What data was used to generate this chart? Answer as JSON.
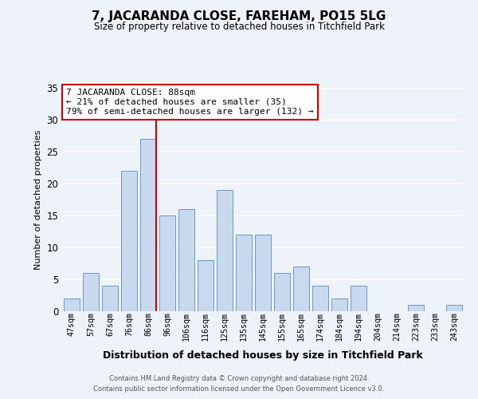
{
  "title": "7, JACARANDA CLOSE, FAREHAM, PO15 5LG",
  "subtitle": "Size of property relative to detached houses in Titchfield Park",
  "xlabel": "Distribution of detached houses by size in Titchfield Park",
  "ylabel": "Number of detached properties",
  "bar_labels": [
    "47sqm",
    "57sqm",
    "67sqm",
    "76sqm",
    "86sqm",
    "96sqm",
    "106sqm",
    "116sqm",
    "125sqm",
    "135sqm",
    "145sqm",
    "155sqm",
    "165sqm",
    "174sqm",
    "184sqm",
    "194sqm",
    "204sqm",
    "214sqm",
    "223sqm",
    "233sqm",
    "243sqm"
  ],
  "bar_values": [
    2,
    6,
    4,
    22,
    27,
    15,
    16,
    8,
    19,
    12,
    12,
    6,
    7,
    4,
    2,
    4,
    0,
    0,
    1,
    0,
    1
  ],
  "bar_color": "#c9d9ed",
  "bar_edge_color": "#6699cc",
  "background_color": "#eef2f9",
  "grid_color": "#ffffff",
  "ylim": [
    0,
    35
  ],
  "yticks": [
    0,
    5,
    10,
    15,
    20,
    25,
    30,
    35
  ],
  "vline_x_index": 4,
  "vline_color": "#cc0000",
  "annotation_title": "7 JACARANDA CLOSE: 88sqm",
  "annotation_line1": "← 21% of detached houses are smaller (35)",
  "annotation_line2": "79% of semi-detached houses are larger (132) →",
  "annotation_box_edge": "#cc0000",
  "footer1": "Contains HM Land Registry data © Crown copyright and database right 2024.",
  "footer2": "Contains public sector information licensed under the Open Government Licence v3.0."
}
